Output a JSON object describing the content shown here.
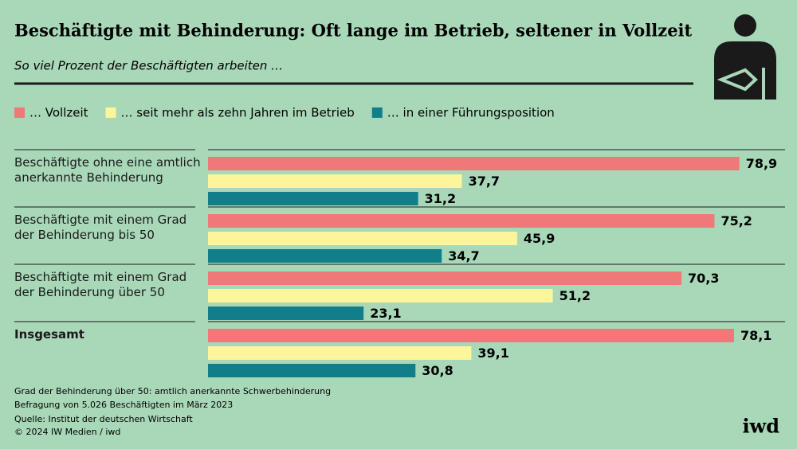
{
  "chart_data": {
    "type": "bar",
    "orientation": "horizontal",
    "title": "Beschäftigte mit Behinderung: Oft lange im Betrieb, seltener in Vollzeit",
    "subtitle": "So viel Prozent der Beschäftigten arbeiten …",
    "categories": [
      "Beschäftigte ohne eine amtlich anerkannte Behinderung",
      "Beschäftigte mit einem Grad der Behinderung bis 50",
      "Beschäftigte mit einem Grad der Behinderung über 50",
      "Insgesamt"
    ],
    "series": [
      {
        "name": "… Vollzeit",
        "color": "#f07878",
        "values": [
          78.9,
          75.2,
          70.3,
          78.1
        ],
        "value_labels": [
          "78,9",
          "75,2",
          "70,3",
          "78,1"
        ]
      },
      {
        "name": "… seit mehr als zehn Jahren im Betrieb",
        "color": "#fcf59a",
        "values": [
          37.7,
          45.9,
          51.2,
          39.1
        ],
        "value_labels": [
          "37,7",
          "45,9",
          "51,2",
          "39,1"
        ]
      },
      {
        "name": "… in einer Führungsposition",
        "color": "#127e89",
        "values": [
          31.2,
          34.7,
          23.1,
          30.8
        ],
        "value_labels": [
          "31,2",
          "34,7",
          "23,1",
          "30,8"
        ]
      }
    ],
    "notes": [
      "Grad der Behinderung über 50: amtlich anerkannte Schwerbehinderung",
      "Befragung von 5.026 Beschäftigten im März 2023"
    ],
    "source": "Quelle: Institut der deutschen Wirtschaft",
    "copyright": "© 2024 IW Medien / iwd",
    "logo": "iwd"
  }
}
